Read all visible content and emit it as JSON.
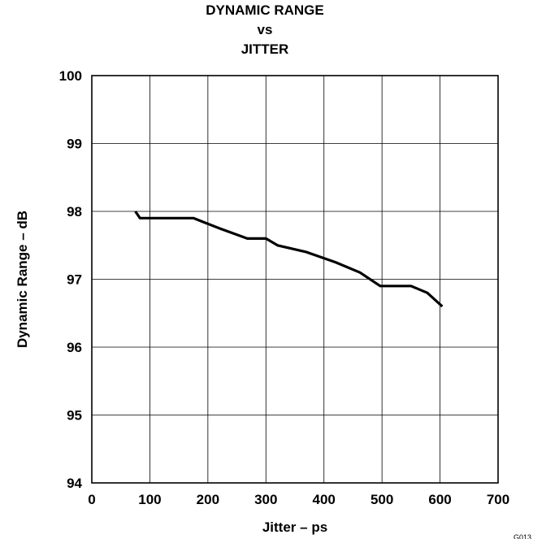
{
  "chart_data": {
    "type": "line",
    "title_lines": [
      "DYNAMIC RANGE",
      "vs",
      "JITTER"
    ],
    "xlabel": "Jitter – ps",
    "ylabel": "Dynamic Range – dB",
    "xlim": [
      0,
      700
    ],
    "ylim": [
      94,
      100
    ],
    "x_ticks": [
      0,
      100,
      200,
      300,
      400,
      500,
      600,
      700
    ],
    "y_ticks": [
      94,
      95,
      96,
      97,
      98,
      99,
      100
    ],
    "grid": true,
    "series": [
      {
        "x": [
          75,
          83,
          100,
          150,
          175,
          220,
          268,
          300,
          320,
          370,
          420,
          462,
          497,
          550,
          578,
          604
        ],
        "y": [
          98.0,
          97.9,
          97.9,
          97.9,
          97.9,
          97.75,
          97.6,
          97.6,
          97.5,
          97.4,
          97.25,
          97.1,
          96.9,
          96.9,
          96.8,
          96.6
        ]
      }
    ],
    "colors": {
      "line": "#000000",
      "grid": "#000000",
      "background": "#ffffff"
    }
  },
  "figure_id": "G013"
}
